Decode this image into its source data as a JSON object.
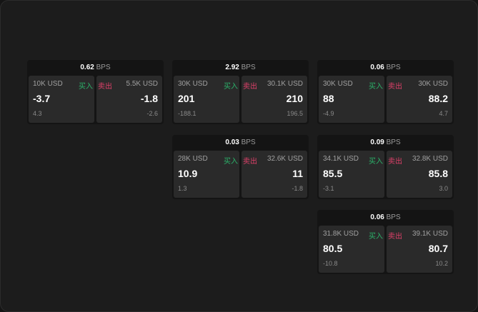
{
  "unit": "BPS",
  "buy_label": "买入",
  "sell_label": "卖出",
  "colors": {
    "buy": "#2bb36a",
    "sell": "#e0406a"
  },
  "cards": [
    {
      "spread": "0.62",
      "bid": {
        "size": "10K USD",
        "price": "-3.7",
        "change": "4.3"
      },
      "ask": {
        "size": "5.5K USD",
        "price": "-1.8",
        "change": "-2.6"
      }
    },
    {
      "spread": "2.92",
      "bid": {
        "size": "30K USD",
        "price": "201",
        "change": "-188.1"
      },
      "ask": {
        "size": "30.1K USD",
        "price": "210",
        "change": "196.5"
      }
    },
    {
      "spread": "0.06",
      "bid": {
        "size": "30K USD",
        "price": "88",
        "change": "-4.9"
      },
      "ask": {
        "size": "30K USD",
        "price": "88.2",
        "change": "4.7"
      }
    },
    {
      "spread": "0.03",
      "bid": {
        "size": "28K USD",
        "price": "10.9",
        "change": "1.3"
      },
      "ask": {
        "size": "32.6K USD",
        "price": "11",
        "change": "-1.8"
      }
    },
    {
      "spread": "0.09",
      "bid": {
        "size": "34.1K USD",
        "price": "85.5",
        "change": "-3.1"
      },
      "ask": {
        "size": "32.8K USD",
        "price": "85.8",
        "change": "3.0"
      }
    },
    {
      "spread": "0.06",
      "bid": {
        "size": "31.8K USD",
        "price": "80.5",
        "change": "-10.8"
      },
      "ask": {
        "size": "39.1K USD",
        "price": "80.7",
        "change": "10.2"
      }
    }
  ]
}
